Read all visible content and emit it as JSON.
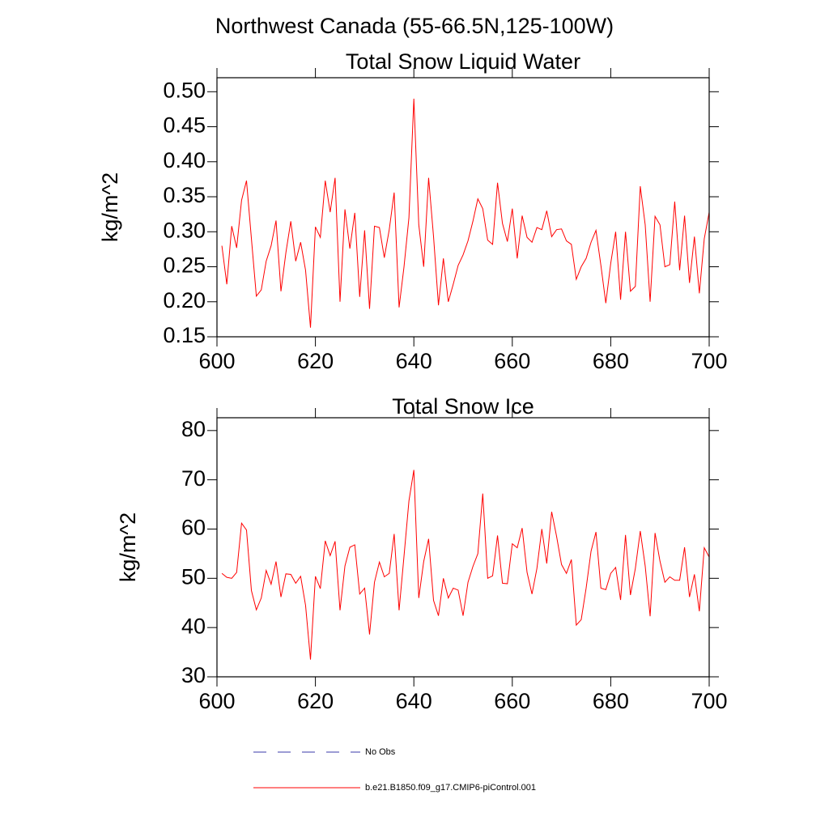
{
  "title": "Northwest Canada (55-66.5N,125-100W)",
  "legend": [
    {
      "name": "No Obs",
      "color": "#3a3aa8",
      "dashed": true
    },
    {
      "name": "b.e21.B1850.f09_g17.CMIP6-piControl.001",
      "color": "#ff0000",
      "dashed": false
    }
  ],
  "chart_data": [
    {
      "type": "line",
      "title": "Total Snow Liquid Water",
      "y_label": "kg/m^2",
      "x": [
        601,
        602,
        603,
        604,
        605,
        606,
        607,
        608,
        609,
        610,
        611,
        612,
        613,
        614,
        615,
        616,
        617,
        618,
        619,
        620,
        621,
        622,
        623,
        624,
        625,
        626,
        627,
        628,
        629,
        630,
        631,
        632,
        633,
        634,
        635,
        636,
        637,
        638,
        639,
        640,
        641,
        642,
        643,
        644,
        645,
        646,
        647,
        648,
        649,
        650,
        651,
        652,
        653,
        654,
        655,
        656,
        657,
        658,
        659,
        660,
        661,
        662,
        663,
        664,
        665,
        666,
        667,
        668,
        669,
        670,
        671,
        672,
        673,
        674,
        675,
        676,
        677,
        678,
        679,
        680,
        681,
        682,
        683,
        684,
        685,
        686,
        687,
        688,
        689,
        690,
        691,
        692,
        693,
        694,
        695,
        696,
        697,
        698,
        699,
        700
      ],
      "series": [
        {
          "color": "#ff0000",
          "values": [
            0.28,
            0.225,
            0.308,
            0.277,
            0.345,
            0.373,
            0.29,
            0.208,
            0.217,
            0.258,
            0.28,
            0.316,
            0.215,
            0.27,
            0.315,
            0.258,
            0.285,
            0.245,
            0.163,
            0.307,
            0.292,
            0.373,
            0.328,
            0.377,
            0.2,
            0.332,
            0.276,
            0.327,
            0.207,
            0.302,
            0.19,
            0.308,
            0.306,
            0.263,
            0.303,
            0.356,
            0.192,
            0.25,
            0.32,
            0.49,
            0.31,
            0.25,
            0.377,
            0.293,
            0.195,
            0.262,
            0.2,
            0.225,
            0.252,
            0.267,
            0.287,
            0.315,
            0.347,
            0.333,
            0.288,
            0.282,
            0.37,
            0.312,
            0.286,
            0.333,
            0.262,
            0.323,
            0.292,
            0.285,
            0.306,
            0.303,
            0.33,
            0.293,
            0.303,
            0.304,
            0.287,
            0.282,
            0.232,
            0.25,
            0.262,
            0.285,
            0.302,
            0.252,
            0.198,
            0.255,
            0.3,
            0.203,
            0.3,
            0.215,
            0.222,
            0.365,
            0.31,
            0.2,
            0.322,
            0.31,
            0.25,
            0.253,
            0.343,
            0.245,
            0.323,
            0.227,
            0.293,
            0.212,
            0.29,
            0.328
          ]
        }
      ],
      "xlim": [
        600,
        700
      ],
      "xticks": [
        600,
        620,
        640,
        660,
        680,
        700
      ],
      "ylim": [
        0.15,
        0.52
      ],
      "yticks": [
        0.15,
        {
          "value": 0.2,
          "label": "0.20"
        },
        0.25,
        {
          "value": 0.3,
          "label": "0.30"
        },
        0.35,
        {
          "value": 0.4,
          "label": "0.40"
        },
        0.45,
        {
          "value": 0.5,
          "label": "0.50"
        }
      ]
    },
    {
      "type": "line",
      "title": "Total Snow Ice",
      "y_label": "kg/m^2",
      "x": [
        601,
        602,
        603,
        604,
        605,
        606,
        607,
        608,
        609,
        610,
        611,
        612,
        613,
        614,
        615,
        616,
        617,
        618,
        619,
        620,
        621,
        622,
        623,
        624,
        625,
        626,
        627,
        628,
        629,
        630,
        631,
        632,
        633,
        634,
        635,
        636,
        637,
        638,
        639,
        640,
        641,
        642,
        643,
        644,
        645,
        646,
        647,
        648,
        649,
        650,
        651,
        652,
        653,
        654,
        655,
        656,
        657,
        658,
        659,
        660,
        661,
        662,
        663,
        664,
        665,
        666,
        667,
        668,
        669,
        670,
        671,
        672,
        673,
        674,
        675,
        676,
        677,
        678,
        679,
        680,
        681,
        682,
        683,
        684,
        685,
        686,
        687,
        688,
        689,
        690,
        691,
        692,
        693,
        694,
        695,
        696,
        697,
        698,
        699,
        700
      ],
      "series": [
        {
          "color": "#ff0000",
          "values": [
            51,
            50.2,
            50,
            51.2,
            61.2,
            59.8,
            47.5,
            43.6,
            46,
            51.6,
            48.8,
            53.4,
            46.2,
            50.9,
            50.8,
            49,
            50.4,
            44.5,
            33.5,
            50.4,
            47.9,
            57.6,
            54.6,
            57.5,
            43.5,
            52.5,
            56.3,
            56.8,
            46.8,
            48,
            38.6,
            49.2,
            53.3,
            50.3,
            51,
            59,
            43.5,
            54.5,
            65.7,
            72,
            46,
            53.4,
            58,
            45.5,
            42.4,
            50,
            46,
            48,
            47.6,
            42.4,
            49.2,
            52.4,
            55,
            67.2,
            50,
            50.5,
            58.7,
            49,
            48.9,
            57,
            56.2,
            60.2,
            51.2,
            46.8,
            52,
            60,
            53,
            63.5,
            58.5,
            52.8,
            51,
            53.8,
            40.5,
            41.6,
            48,
            55.5,
            59.4,
            48,
            47.7,
            51,
            52.2,
            45.6,
            58.8,
            46.6,
            52,
            59.6,
            52.5,
            42.3,
            59.2,
            53.5,
            49.2,
            50.3,
            49.6,
            49.6,
            56.3,
            46.2,
            50.8,
            43.3,
            56.2,
            54.3
          ]
        }
      ],
      "xlim": [
        600,
        700
      ],
      "xticks": [
        600,
        620,
        640,
        660,
        680,
        700
      ],
      "ylim": [
        30,
        82.6
      ],
      "yticks": [
        30,
        40,
        50,
        60,
        70,
        80
      ]
    }
  ]
}
